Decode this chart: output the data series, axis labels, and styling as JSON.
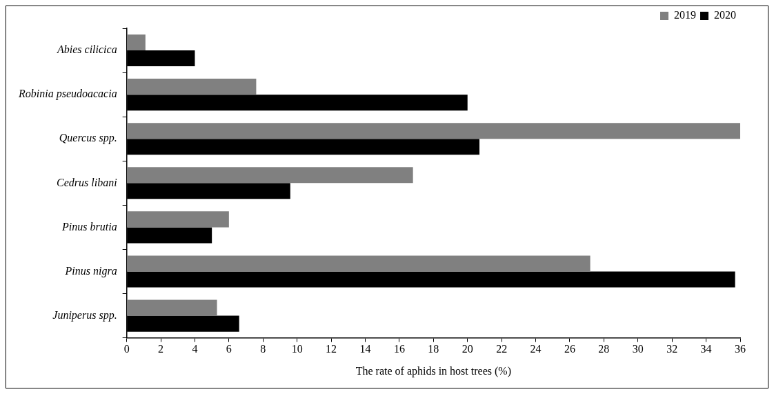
{
  "chart_data": {
    "type": "bar",
    "orientation": "horizontal",
    "xlabel": "The rate of aphids in host trees (%)",
    "categories": [
      "Abies cilicica",
      "Robinia pseudoacacia",
      "Quercus spp.",
      "Cedrus libani",
      "Pinus brutia",
      "Pinus nigra",
      "Juniperus spp."
    ],
    "series": [
      {
        "name": "2019",
        "color": "#808080",
        "values": [
          1.1,
          7.6,
          36,
          16.8,
          6.0,
          27.2,
          5.3
        ]
      },
      {
        "name": "2020",
        "color": "#000000",
        "values": [
          4.0,
          20.0,
          20.7,
          9.6,
          5.0,
          35.7,
          6.6
        ]
      }
    ],
    "xlim": [
      0,
      36
    ],
    "xticks": [
      0,
      2,
      4,
      6,
      8,
      10,
      12,
      14,
      16,
      18,
      20,
      22,
      24,
      26,
      28,
      30,
      32,
      34,
      36
    ],
    "grid": false,
    "legend": "top right"
  }
}
